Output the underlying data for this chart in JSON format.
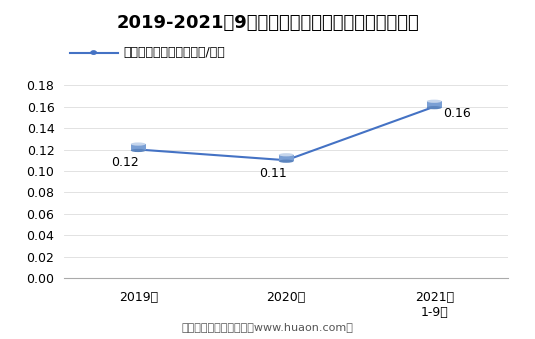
{
  "title": "2019-2021年9月郑州商品交易所棉花期权成交均价",
  "legend_label": "棉花期权成交均价（万元/手）",
  "x_labels": [
    "2019年",
    "2020年",
    "2021年\n1-9月"
  ],
  "x_values": [
    0,
    1,
    2
  ],
  "y_values": [
    0.12,
    0.11,
    0.16
  ],
  "data_labels": [
    "0.12",
    "0.11",
    "0.16"
  ],
  "data_label_offsets": [
    [
      -0.18,
      -0.012
    ],
    [
      -0.18,
      -0.012
    ],
    [
      0.06,
      -0.006
    ]
  ],
  "ylim": [
    0.0,
    0.19
  ],
  "yticks": [
    0.0,
    0.02,
    0.04,
    0.06,
    0.08,
    0.1,
    0.12,
    0.14,
    0.16,
    0.18
  ],
  "line_color": "#4472C4",
  "background_color": "#FFFFFF",
  "footer_text": "制图：华经产业研究院（www.huaon.com）",
  "title_fontsize": 13,
  "legend_fontsize": 9,
  "label_fontsize": 9,
  "tick_fontsize": 9,
  "footer_fontsize": 8
}
